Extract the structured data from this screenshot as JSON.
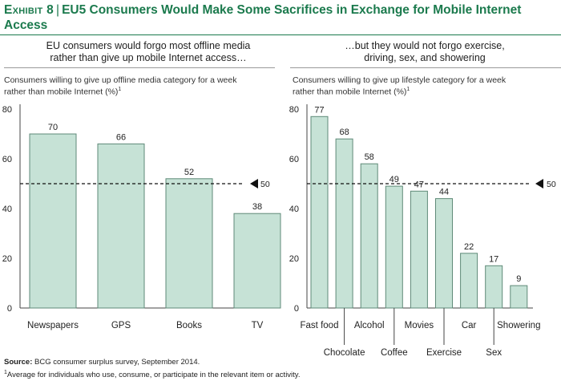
{
  "header": {
    "exhibit": "Exhibit 8",
    "separator": "|",
    "title": "EU5 Consumers Would Make Some Sacrifices in Exchange for Mobile Internet Access"
  },
  "left_panel": {
    "heading_line1": "EU consumers would forgo most offline media",
    "heading_line2": "rather than give up mobile Internet access…",
    "ylabel_line1": "Consumers willing to give up offline media category for a week",
    "ylabel_line2": "rather than mobile Internet (%)",
    "ylabel_sup": "1"
  },
  "right_panel": {
    "heading_line1": "…but they would not forgo exercise,",
    "heading_line2": "driving, sex, and showering",
    "ylabel_line1": "Consumers willing to give up lifestyle category for a week",
    "ylabel_line2": "rather than mobile Internet (%)",
    "ylabel_sup": "1"
  },
  "footer": {
    "source_label": "Source:",
    "source_text": "BCG consumer surplus survey, September 2014.",
    "footnote_sup": "1",
    "footnote_text": "Average for individuals who use, consume, or participate in the relevant item or activity."
  },
  "colors": {
    "bar_fill": "#c6e2d6",
    "bar_stroke": "#5f8a78",
    "title": "#1b7a4d"
  },
  "chart_data": [
    {
      "type": "bar",
      "categories": [
        "Newspapers",
        "GPS",
        "Books",
        "TV"
      ],
      "values": [
        70,
        66,
        52,
        38
      ],
      "ylim": [
        0,
        80
      ],
      "yticks": [
        0,
        20,
        40,
        60,
        80
      ],
      "reference_line": {
        "value": 50,
        "label": "50",
        "style": "dashed"
      },
      "grid": false
    },
    {
      "type": "bar",
      "categories": [
        "Fast food",
        "Chocolate",
        "Alcohol",
        "Coffee",
        "Movies",
        "Exercise",
        "Car",
        "Sex",
        "Showering"
      ],
      "values": [
        77,
        68,
        58,
        49,
        47,
        44,
        22,
        17,
        9
      ],
      "label_rows": [
        "upper",
        "lower",
        "upper",
        "lower",
        "upper",
        "lower",
        "upper",
        "lower",
        "upper"
      ],
      "ylim": [
        0,
        80
      ],
      "yticks": [
        0,
        20,
        40,
        60,
        80
      ],
      "reference_line": {
        "value": 50,
        "label": "50",
        "style": "dashed"
      },
      "grid": false
    }
  ]
}
